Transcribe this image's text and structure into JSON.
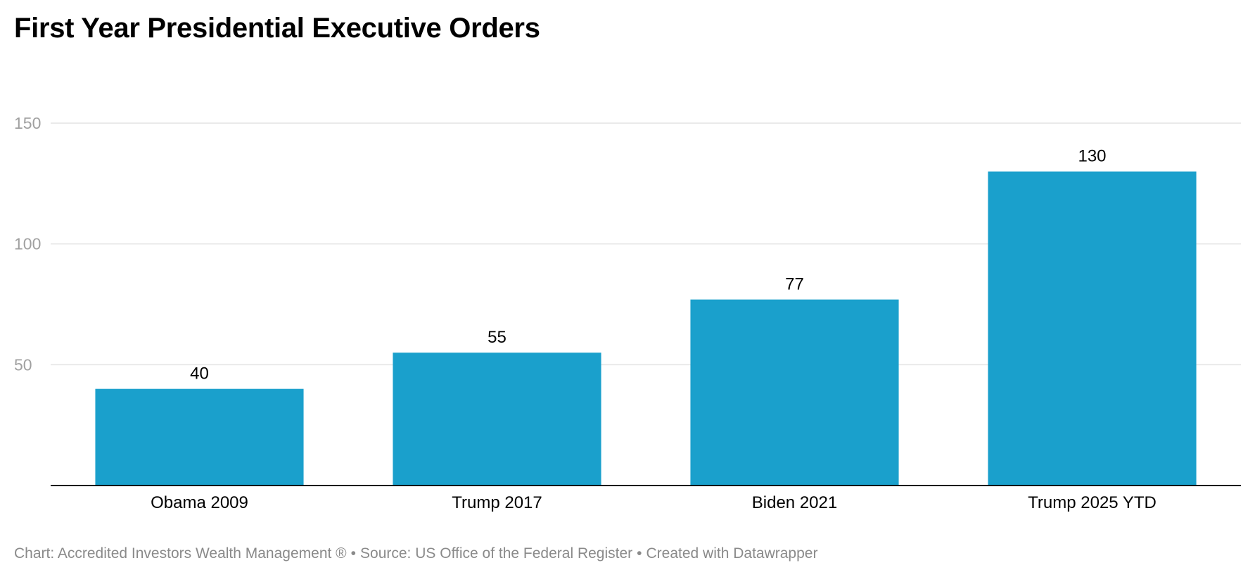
{
  "title": "First Year Presidential Executive Orders",
  "footer": {
    "chart_credit": "Chart: Accredited Investors Wealth Management ®",
    "separator": "•",
    "source": "Source: US Office of the Federal Register",
    "tool": "Created with Datawrapper"
  },
  "colors": {
    "bar": "#1aa0cc",
    "grid": "#e3e3e3",
    "baseline": "#000000",
    "tick_text": "#a0a0a0",
    "label_text": "#000000"
  },
  "chart_data": {
    "type": "bar",
    "title": "First Year Presidential Executive Orders",
    "categories": [
      "Obama 2009",
      "Trump 2017",
      "Biden 2021",
      "Trump 2025 YTD"
    ],
    "values": [
      40,
      55,
      77,
      130
    ],
    "value_labels": [
      "40",
      "55",
      "77",
      "130"
    ],
    "xlabel": "",
    "ylabel": "",
    "ylim": [
      0,
      150
    ],
    "yticks": [
      50,
      100,
      150
    ],
    "ytick_labels": [
      "50",
      "100",
      "150"
    ],
    "grid": true,
    "legend": "none"
  }
}
